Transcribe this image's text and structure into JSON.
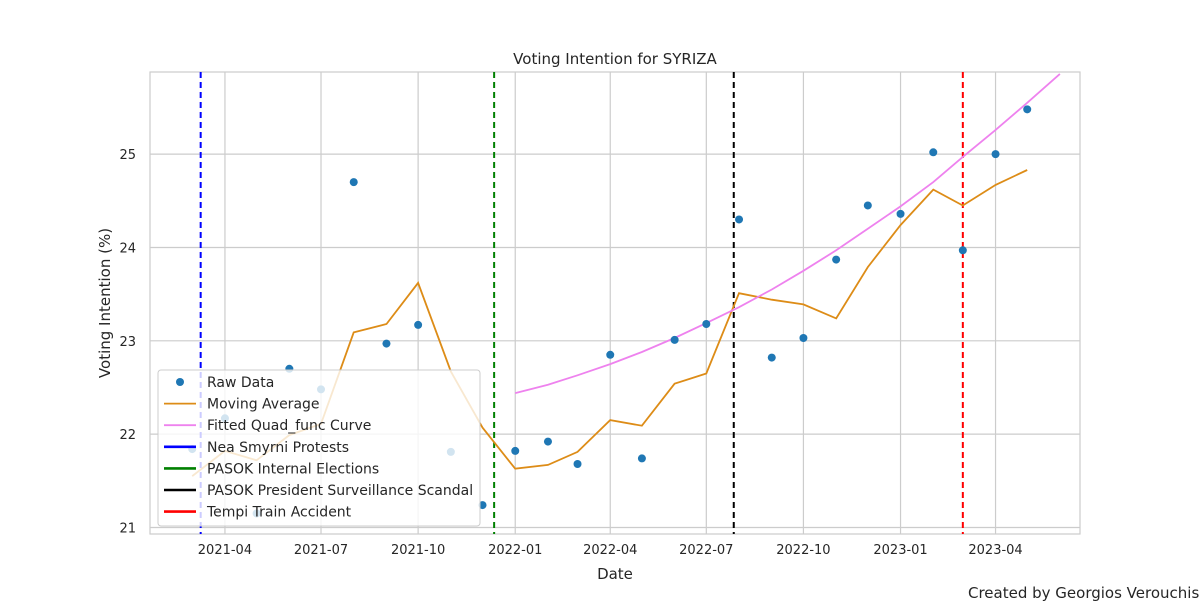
{
  "chart_data": {
    "type": "line",
    "title": "Voting Intention for SYRIZA",
    "xlabel": "Date",
    "ylabel": "Voting Intention (%)",
    "xlim": [
      "2021-01-20",
      "2023-06-20"
    ],
    "ylim": [
      20.93,
      25.88
    ],
    "x_ticks": [
      "2021-04",
      "2021-07",
      "2021-10",
      "2022-01",
      "2022-04",
      "2022-07",
      "2022-10",
      "2023-01",
      "2023-04"
    ],
    "y_ticks": [
      "21",
      "22",
      "23",
      "24",
      "25"
    ],
    "grid": true,
    "legend_position": "lower-left",
    "series": [
      {
        "name": "Raw Data",
        "kind": "scatter",
        "color": "#1f77b4",
        "x": [
          "2021-03-01",
          "2021-04-01",
          "2021-05-01",
          "2021-06-01",
          "2021-07-01",
          "2021-08-01",
          "2021-09-01",
          "2021-10-01",
          "2021-11-01",
          "2021-12-01",
          "2022-01-01",
          "2022-02-01",
          "2022-03-01",
          "2022-04-01",
          "2022-05-01",
          "2022-06-01",
          "2022-07-01",
          "2022-08-01",
          "2022-09-01",
          "2022-10-01",
          "2022-11-01",
          "2022-12-01",
          "2023-01-01",
          "2023-02-01",
          "2023-03-01",
          "2023-04-01",
          "2023-05-01"
        ],
        "y": [
          21.84,
          22.17,
          21.15,
          22.7,
          22.48,
          24.7,
          22.97,
          23.17,
          21.81,
          21.24,
          21.82,
          21.92,
          21.68,
          22.85,
          21.74,
          23.01,
          23.18,
          24.3,
          22.82,
          23.03,
          23.87,
          24.45,
          24.36,
          25.02,
          23.97,
          25.0,
          25.48
        ]
      },
      {
        "name": "Moving Average",
        "kind": "line",
        "color": "#dd8c17",
        "x": [
          "2021-03-01",
          "2021-04-01",
          "2021-05-01",
          "2021-06-01",
          "2021-07-01",
          "2021-08-01",
          "2021-09-01",
          "2021-10-01",
          "2021-11-01",
          "2021-12-01",
          "2022-01-01",
          "2022-02-01",
          "2022-03-01",
          "2022-04-01",
          "2022-05-01",
          "2022-06-01",
          "2022-07-01",
          "2022-08-01",
          "2022-09-01",
          "2022-10-01",
          "2022-11-01",
          "2022-12-01",
          "2023-01-01",
          "2023-02-01",
          "2023-03-01",
          "2023-04-01",
          "2023-05-01"
        ],
        "y": [
          21.55,
          21.82,
          21.72,
          21.99,
          22.11,
          23.09,
          23.18,
          23.62,
          22.67,
          22.07,
          21.63,
          21.67,
          21.81,
          22.15,
          22.09,
          22.54,
          22.65,
          23.51,
          23.44,
          23.39,
          23.24,
          23.79,
          24.24,
          24.62,
          24.45,
          24.67,
          24.83
        ]
      },
      {
        "name": "Fitted Quad_func Curve",
        "kind": "line",
        "color": "#ee82ee",
        "x": [
          "2022-01-01",
          "2022-02-01",
          "2022-03-01",
          "2022-04-01",
          "2022-05-01",
          "2022-06-01",
          "2022-07-01",
          "2022-08-01",
          "2022-09-01",
          "2022-10-01",
          "2022-11-01",
          "2022-12-01",
          "2023-01-01",
          "2023-02-01",
          "2023-03-01",
          "2023-04-01",
          "2023-05-01",
          "2023-06-01"
        ],
        "y": [
          22.44,
          22.53,
          22.63,
          22.75,
          22.88,
          23.03,
          23.19,
          23.36,
          23.55,
          23.75,
          23.97,
          24.2,
          24.44,
          24.7,
          24.97,
          25.26,
          25.55,
          25.86
        ]
      }
    ],
    "events": [
      {
        "name": "Nea Smyrni Protests",
        "date": "2021-03-09",
        "color": "#0000ff"
      },
      {
        "name": "PASOK Internal Elections",
        "date": "2021-12-12",
        "color": "#008000"
      },
      {
        "name": "PASOK President Surveillance Scandal",
        "date": "2022-07-27",
        "color": "#000000"
      },
      {
        "name": "Tempi Train Accident",
        "date": "2023-03-01",
        "color": "#ff0000"
      }
    ]
  },
  "credit": "Created by Georgios Verouchis"
}
